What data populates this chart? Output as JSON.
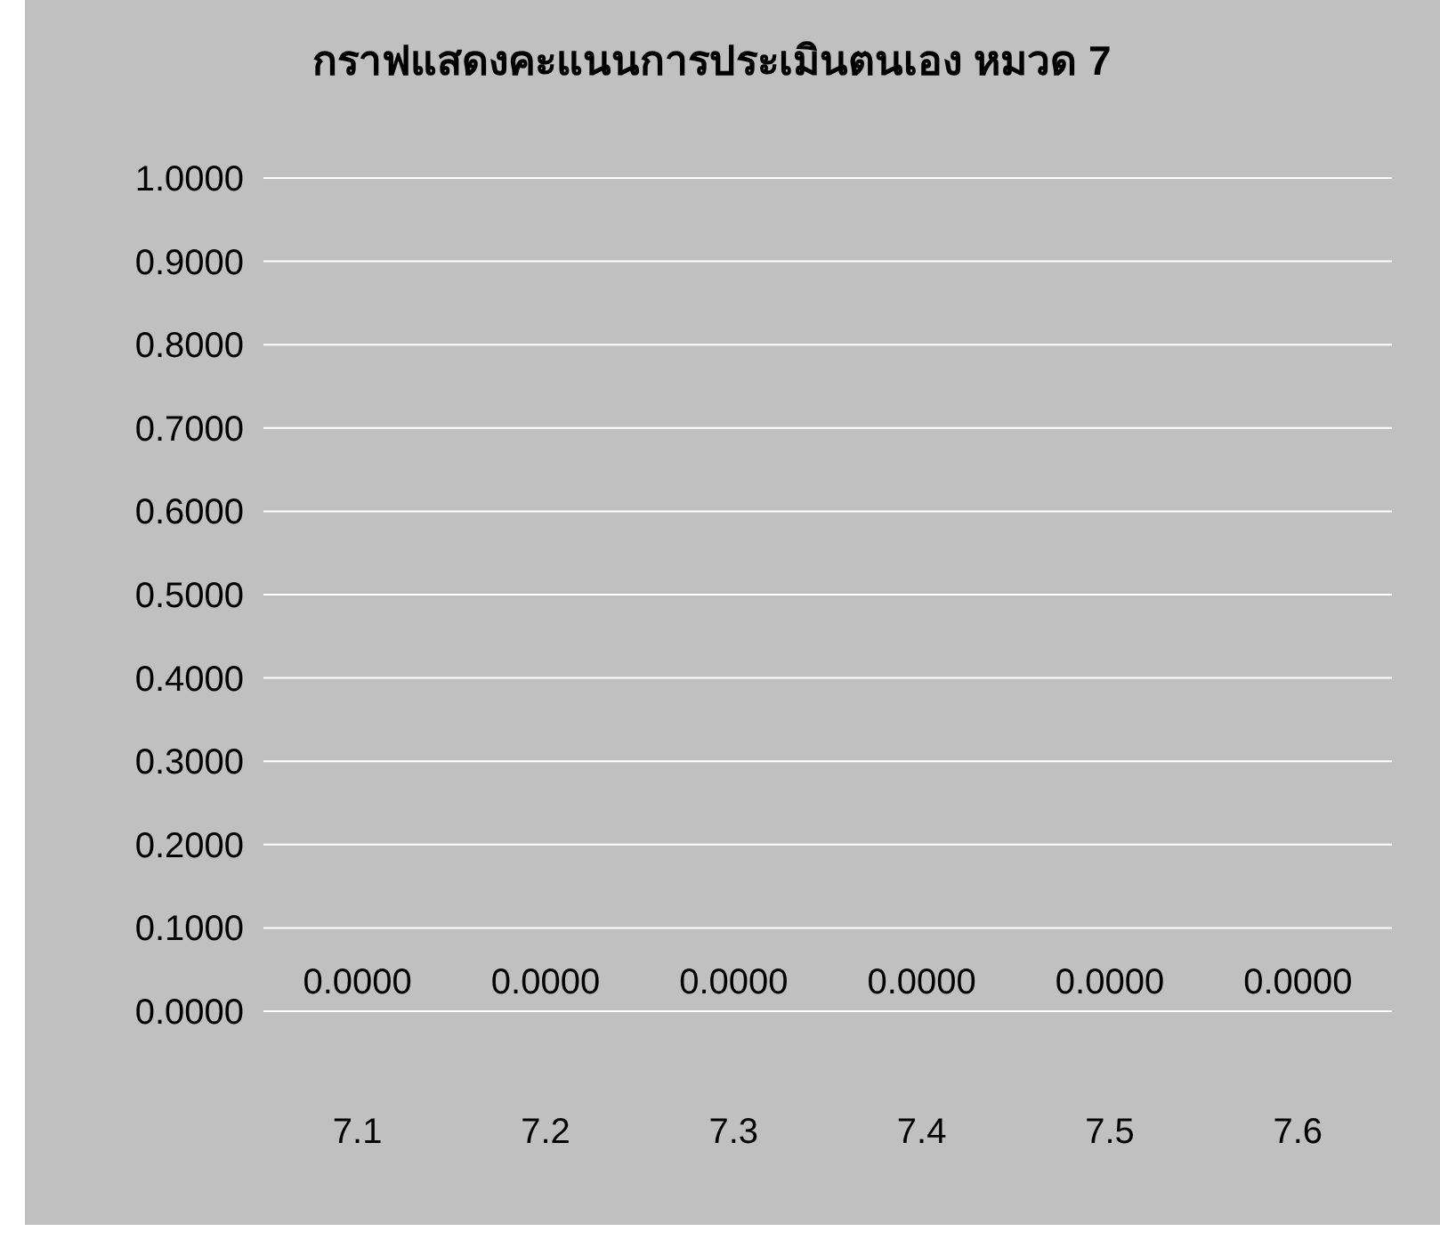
{
  "chart_data": {
    "type": "bar",
    "title": "กราฟแสดงคะแนนการประเมินตนเอง หมวด 7",
    "categories": [
      "7.1",
      "7.2",
      "7.3",
      "7.4",
      "7.5",
      "7.6"
    ],
    "values": [
      0,
      0,
      0,
      0,
      0,
      0
    ],
    "value_labels": [
      "0.0000",
      "0.0000",
      "0.0000",
      "0.0000",
      "0.0000",
      "0.0000"
    ],
    "ylim": [
      0,
      1
    ],
    "yticks": [
      {
        "value": 0,
        "label": "0.0000"
      },
      {
        "value": 0.1,
        "label": "0.1000"
      },
      {
        "value": 0.2,
        "label": "0.2000"
      },
      {
        "value": 0.3,
        "label": "0.3000"
      },
      {
        "value": 0.4,
        "label": "0.4000"
      },
      {
        "value": 0.5,
        "label": "0.5000"
      },
      {
        "value": 0.6,
        "label": "0.6000"
      },
      {
        "value": 0.7,
        "label": "0.7000"
      },
      {
        "value": 0.8,
        "label": "0.8000"
      },
      {
        "value": 0.9,
        "label": "0.9000"
      },
      {
        "value": 1,
        "label": "1.0000"
      }
    ],
    "grid": "y"
  }
}
